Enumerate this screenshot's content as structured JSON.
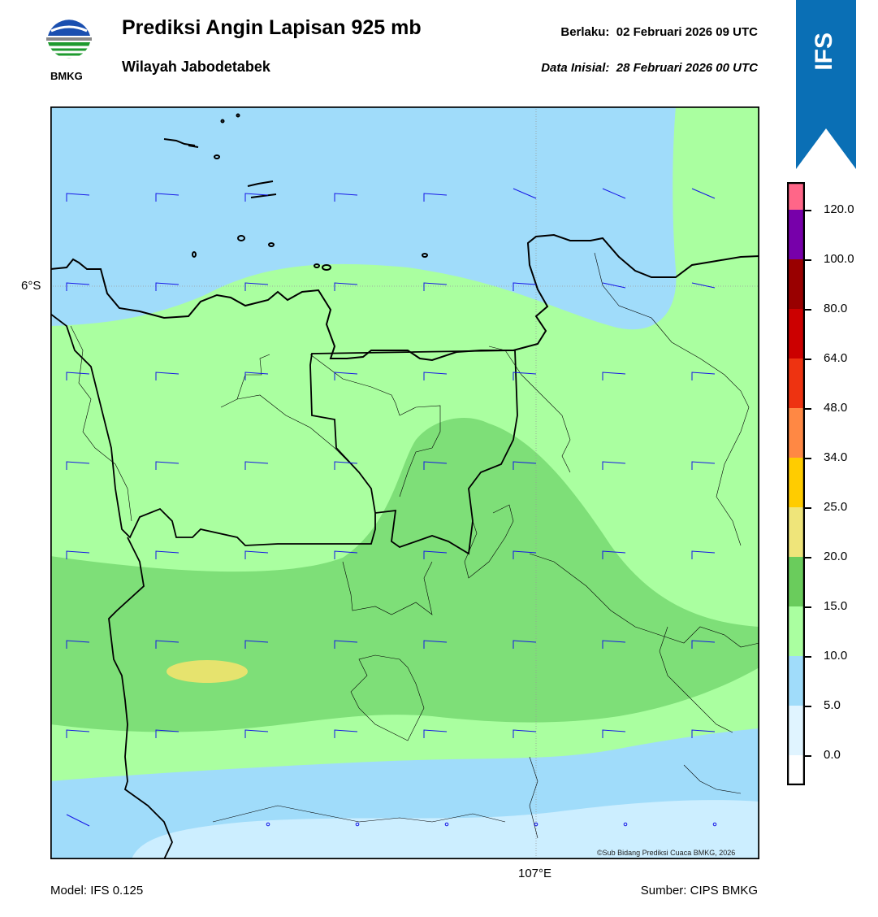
{
  "header": {
    "title": "Prediksi Angin Lapisan 925 mb",
    "subtitle": "Wilayah Jabodetabek",
    "valid_label": "Berlaku:",
    "valid_value": "02 Februari 2026 09 UTC",
    "init_label": "Data Inisial:",
    "init_value": "28 Februari 2026 00 UTC"
  },
  "logo": {
    "text": "BMKG",
    "icon": "bmkg-logo"
  },
  "badge": {
    "text": "IFS",
    "color": "#0A6FB5"
  },
  "map": {
    "lat_label": "6°S",
    "lon_label": "107°E",
    "copyright": "©Sub Bidang Prediksi Cuaca BMKG, 2026",
    "shading_colors": {
      "0-5": "#CCEEFF",
      "5-10": "#A0DCFA",
      "10-15": "#AAFFA0",
      "15-20": "#7EDF78",
      "20-25": "#E6E36E"
    },
    "barb_color": "#1414E6"
  },
  "colorbar": {
    "labels": [
      "0.0",
      "5.0",
      "10.0",
      "15.0",
      "20.0",
      "25.0",
      "34.0",
      "48.0",
      "64.0",
      "80.0",
      "100.0",
      "120.0"
    ],
    "colors": [
      "#FFFFFF",
      "#E0F4FF",
      "#A0DCFA",
      "#AAFFA0",
      "#6ACC5C",
      "#EFE57A",
      "#FFCC00",
      "#FF8844",
      "#EE3311",
      "#CC0000",
      "#990000",
      "#7700AA",
      "#FF6688"
    ]
  },
  "footer": {
    "model": "Model: IFS 0.125",
    "source": "Sumber: CIPS BMKG"
  }
}
